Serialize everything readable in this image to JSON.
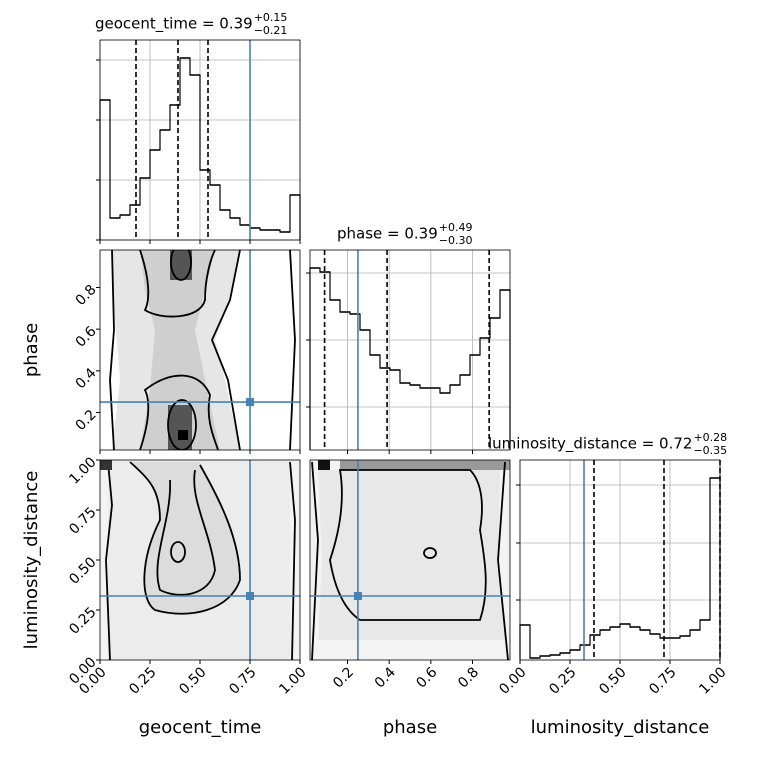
{
  "chart_data": {
    "type": "corner",
    "truth_color": "#4682b4",
    "parameters": [
      {
        "name": "geocent_time",
        "truth": 0.75,
        "xlim": [
          0,
          1
        ],
        "xticks": [
          {
            "value": 0,
            "label": "0.00"
          },
          {
            "value": 0.25,
            "label": "0.25"
          },
          {
            "value": 0.5,
            "label": "0.50"
          },
          {
            "value": 0.75,
            "label": "0.75"
          },
          {
            "value": 1,
            "label": "1.00"
          }
        ],
        "title": {
          "text": "geocent_time = 0.39",
          "plus": "+0.15",
          "minus": "−0.21"
        },
        "quantiles": [
          0.18,
          0.39,
          0.54
        ],
        "bins": [
          0,
          0.05,
          0.1,
          0.15,
          0.2,
          0.25,
          0.3,
          0.35,
          0.4,
          0.45,
          0.5,
          0.55,
          0.6,
          0.65,
          0.7,
          0.75,
          0.8,
          0.85,
          0.9,
          0.95,
          1
        ],
        "counts": [
          140,
          22,
          25,
          35,
          62,
          90,
          110,
          135,
          182,
          165,
          70,
          55,
          30,
          22,
          15,
          12,
          10,
          10,
          8,
          45
        ],
        "ylim": [
          0,
          200
        ],
        "yticks": [
          0,
          60,
          120,
          180
        ]
      },
      {
        "name": "phase",
        "truth": 0.25,
        "xlim": [
          0.02,
          0.98
        ],
        "xticks": [
          0.2,
          0.4,
          0.6,
          0.8
        ],
        "title": {
          "text": "phase = 0.39",
          "plus": "+0.49",
          "minus": "−0.30"
        },
        "quantiles": [
          0.09,
          0.39,
          0.88
        ],
        "bins": [
          0.02,
          0.068,
          0.116,
          0.164,
          0.212,
          0.26,
          0.308,
          0.356,
          0.404,
          0.452,
          0.5,
          0.548,
          0.596,
          0.644,
          0.692,
          0.74,
          0.788,
          0.836,
          0.884,
          0.932,
          0.98
        ],
        "counts": [
          182,
          178,
          150,
          138,
          136,
          120,
          95,
          82,
          80,
          67,
          65,
          62,
          62,
          57,
          65,
          75,
          95,
          112,
          132,
          160
        ],
        "ylim": [
          0,
          200
        ],
        "yticks": [
          43,
          110,
          177
        ]
      },
      {
        "name": "luminosity_distance",
        "truth": 0.32,
        "xlim": [
          0,
          1
        ],
        "xticks": [
          {
            "value": 0,
            "label": "0.00"
          },
          {
            "value": 0.25,
            "label": "0.25"
          },
          {
            "value": 0.5,
            "label": "0.50"
          },
          {
            "value": 0.75,
            "label": "0.75"
          },
          {
            "value": 1,
            "label": "1.00"
          }
        ],
        "title": {
          "text": "luminosity_distance = 0.72",
          "plus": "+0.28",
          "minus": "−0.35"
        },
        "quantiles": [
          0.37,
          0.72,
          1.0
        ],
        "bins": [
          0,
          0.05,
          0.1,
          0.15,
          0.2,
          0.25,
          0.3,
          0.35,
          0.4,
          0.45,
          0.5,
          0.55,
          0.6,
          0.65,
          0.7,
          0.75,
          0.8,
          0.85,
          0.9,
          0.95,
          1
        ],
        "counts": [
          35,
          2,
          4,
          5,
          7,
          10,
          15,
          25,
          30,
          33,
          36,
          33,
          30,
          26,
          22,
          22,
          24,
          30,
          40,
          182
        ],
        "ylim": [
          0,
          200
        ],
        "yticks": [
          60,
          117,
          175
        ]
      }
    ]
  }
}
